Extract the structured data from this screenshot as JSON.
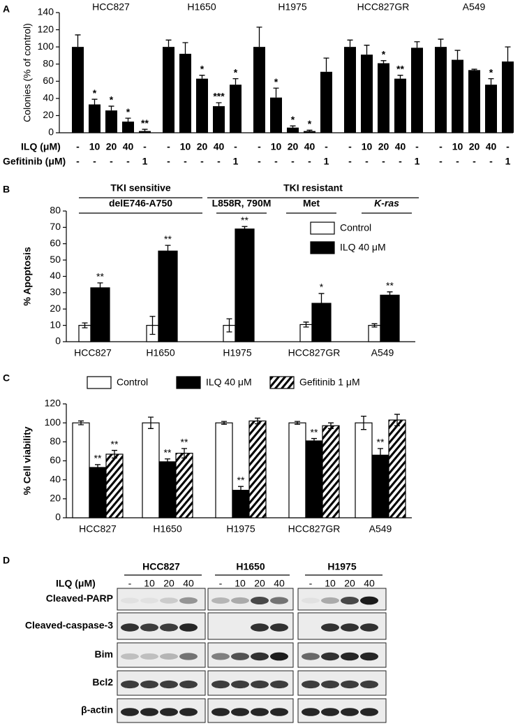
{
  "chart_data": [
    {
      "type": "bar",
      "label": "A",
      "ylabel": "Colonies (% of control)",
      "ylim": [
        0,
        140
      ],
      "yticks": [
        0,
        20,
        40,
        60,
        80,
        100,
        120,
        140
      ],
      "color": "#000000",
      "groups": [
        {
          "name": "HCC827",
          "values": [
            100,
            33,
            26,
            13,
            2
          ],
          "errors": [
            14,
            6,
            5,
            4,
            2
          ],
          "significance": [
            null,
            "*",
            "*",
            "*",
            "**"
          ]
        },
        {
          "name": "H1650",
          "values": [
            100,
            92,
            63,
            31,
            56
          ],
          "errors": [
            8,
            13,
            4,
            4,
            7
          ],
          "significance": [
            null,
            null,
            "*",
            "***",
            "*"
          ]
        },
        {
          "name": "H1975",
          "values": [
            100,
            41,
            6,
            2,
            71
          ],
          "errors": [
            23,
            11,
            2,
            1,
            16
          ],
          "significance": [
            null,
            "*",
            "*",
            "*",
            null
          ]
        },
        {
          "name": "HCC827GR",
          "values": [
            100,
            91,
            81,
            63,
            99
          ],
          "errors": [
            8,
            11,
            3,
            4,
            7
          ],
          "significance": [
            null,
            null,
            "*",
            "**",
            null
          ]
        },
        {
          "name": "A549",
          "values": [
            100,
            85,
            73,
            56,
            83
          ],
          "errors": [
            9,
            11,
            1,
            7,
            17
          ],
          "significance": [
            null,
            null,
            null,
            "*",
            null
          ]
        }
      ],
      "conditions": [
        {
          "name": "ILQ (μM)",
          "values": [
            "-",
            "10",
            "20",
            "40",
            "-"
          ]
        },
        {
          "name": "Gefitinib (μM)",
          "values": [
            "-",
            "-",
            "-",
            "-",
            "1"
          ]
        }
      ]
    },
    {
      "type": "bar",
      "label": "B",
      "ylabel": "% Apoptosis",
      "ylim": [
        0,
        80
      ],
      "yticks": [
        0,
        10,
        20,
        30,
        40,
        50,
        60,
        70,
        80
      ],
      "categories": [
        "HCC827",
        "H1650",
        "H1975",
        "HCC827GR",
        "A549"
      ],
      "brackets": [
        [
          "TKI sensitive",
          "TKI resistant"
        ],
        [
          "delE746-A750",
          "L858R, 790M",
          "Met",
          "K-ras"
        ]
      ],
      "series": [
        {
          "name": "Control",
          "color": "#ffffff",
          "values": [
            10,
            10,
            10,
            10.5,
            10
          ],
          "errors": [
            1.5,
            5.5,
            4,
            1.5,
            1
          ],
          "significance": [
            null,
            null,
            null,
            null,
            null
          ]
        },
        {
          "name": "ILQ 40 μM",
          "color": "#000000",
          "values": [
            33,
            55.5,
            69,
            23.5,
            28.5
          ],
          "errors": [
            3,
            3.5,
            1.5,
            6,
            2
          ],
          "significance": [
            "**",
            "**",
            "**",
            "*",
            "**"
          ]
        }
      ]
    },
    {
      "type": "bar",
      "label": "C",
      "ylabel": "% Cell viability",
      "ylim": [
        0,
        120
      ],
      "yticks": [
        0,
        20,
        40,
        60,
        80,
        100,
        120
      ],
      "categories": [
        "HCC827",
        "H1650",
        "H1975",
        "HCC827GR",
        "A549"
      ],
      "series": [
        {
          "name": "Control",
          "color": "#ffffff",
          "values": [
            100,
            100,
            100,
            100,
            100
          ],
          "errors": [
            2,
            6,
            1.5,
            1.5,
            7
          ],
          "significance": [
            null,
            null,
            null,
            null,
            null
          ]
        },
        {
          "name": "ILQ 40 μM",
          "color": "#000000",
          "values": [
            53,
            59,
            29,
            81,
            66
          ],
          "errors": [
            3,
            3,
            4,
            2.5,
            7
          ],
          "significance": [
            "**",
            "**",
            "**",
            "**",
            "**"
          ]
        },
        {
          "name": "Gefitinib 1 μM",
          "color": "#ffffff",
          "pattern": "hatch",
          "values": [
            67,
            68,
            102,
            97,
            103
          ],
          "errors": [
            4,
            5,
            3,
            3,
            6
          ],
          "significance": [
            "**",
            "**",
            null,
            null,
            null
          ]
        }
      ]
    }
  ],
  "blot": {
    "label": "D",
    "cell_lines": [
      "HCC827",
      "H1650",
      "H1975"
    ],
    "treatment": "ILQ (μM)",
    "lanes": [
      "-",
      "10",
      "20",
      "40"
    ],
    "proteins": [
      "Cleaved-PARP",
      "Cleaved-caspase-3",
      "Bim",
      "Bcl2",
      "β-actin"
    ]
  }
}
